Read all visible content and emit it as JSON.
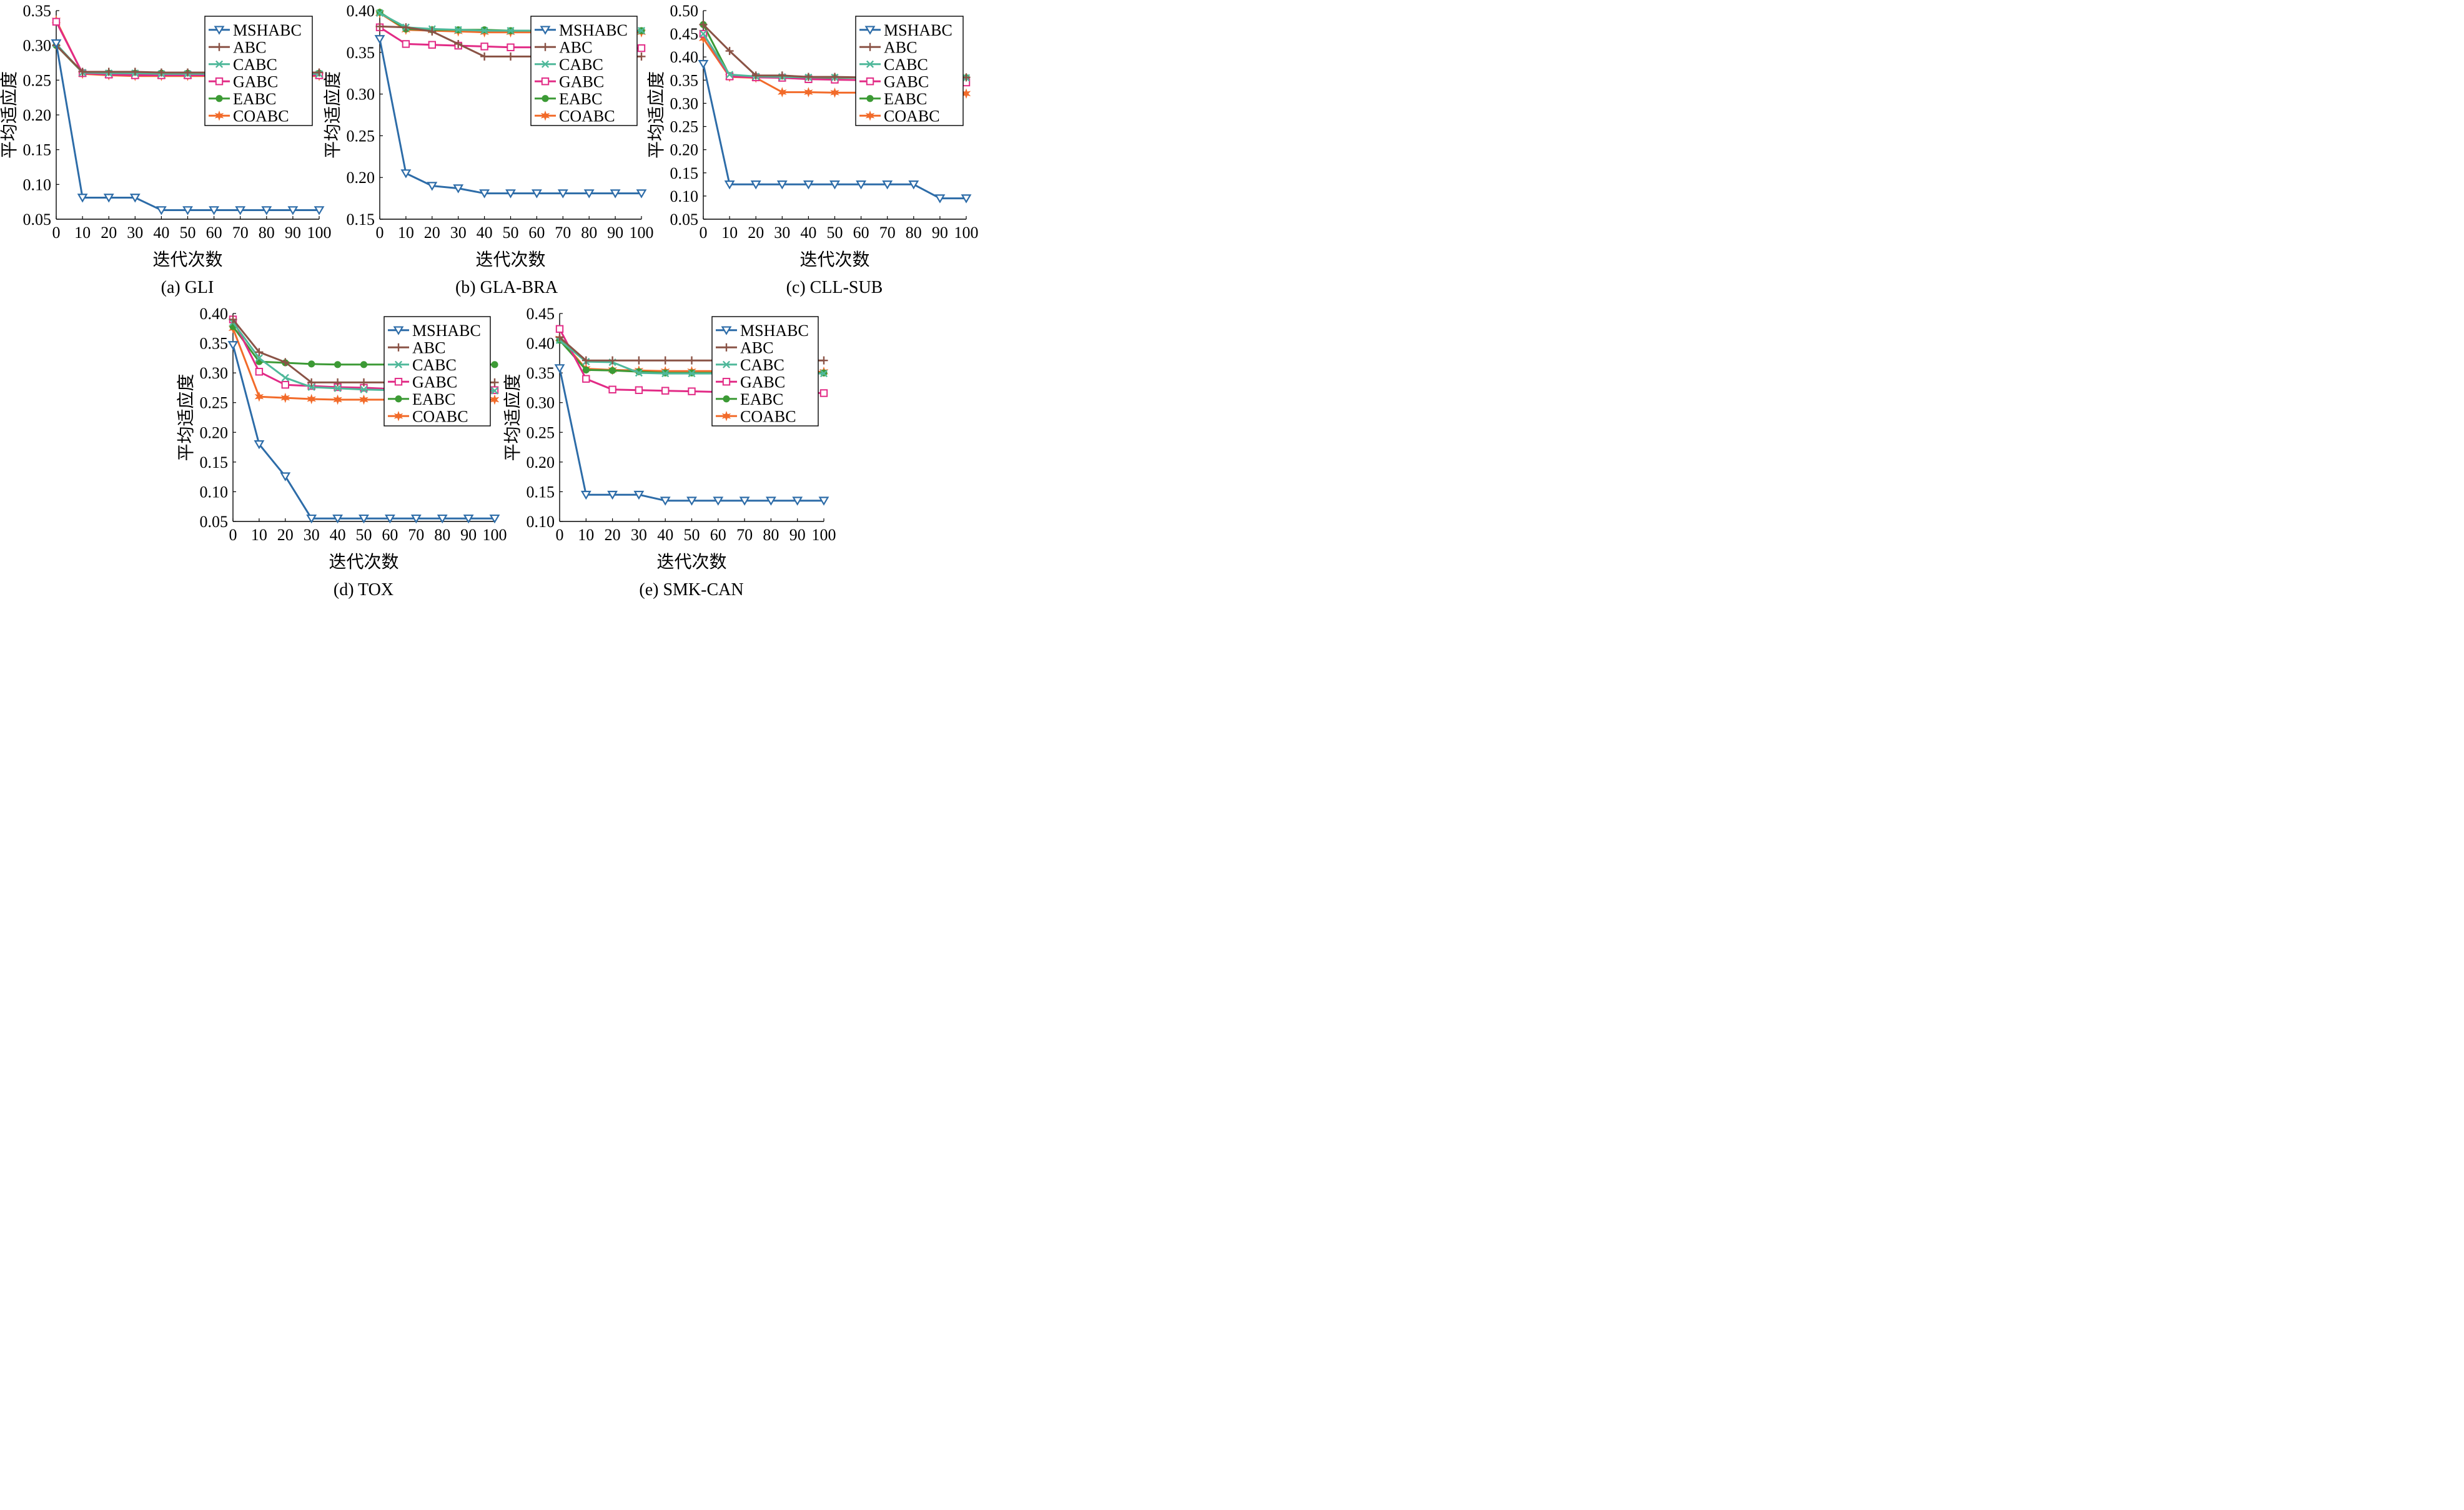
{
  "chart_data": [
    {
      "type": "line",
      "caption": "(a) GLI",
      "xlabel": "迭代次数",
      "ylabel": "平均适应度",
      "xlim": [
        0,
        100
      ],
      "ylim": [
        0.05,
        0.35
      ],
      "xticks": [
        "0",
        "10",
        "20",
        "30",
        "40",
        "50",
        "60",
        "70",
        "80",
        "90",
        "100"
      ],
      "yticks": [
        "0.05",
        "0.10",
        "0.15",
        "0.20",
        "0.25",
        "0.30",
        "0.35"
      ],
      "x": [
        0,
        10,
        20,
        30,
        40,
        50,
        60,
        70,
        80,
        90,
        100
      ],
      "legend": "top-right",
      "series": [
        {
          "name": "MSHABC",
          "values": [
            0.303,
            0.081,
            0.081,
            0.081,
            0.063,
            0.063,
            0.063,
            0.063,
            0.063,
            0.063,
            0.063
          ]
        },
        {
          "name": "ABC",
          "values": [
            0.3,
            0.262,
            0.262,
            0.262,
            0.261,
            0.261,
            0.261,
            0.261,
            0.261,
            0.261,
            0.261
          ]
        },
        {
          "name": "CABC",
          "values": [
            0.302,
            0.261,
            0.26,
            0.26,
            0.259,
            0.259,
            0.259,
            0.259,
            0.259,
            0.259,
            0.259
          ]
        },
        {
          "name": "GABC",
          "values": [
            0.334,
            0.26,
            0.258,
            0.257,
            0.257,
            0.257,
            0.257,
            0.257,
            0.257,
            0.257,
            0.257
          ]
        },
        {
          "name": "EABC",
          "values": [
            0.3,
            0.261,
            0.26,
            0.26,
            0.26,
            0.26,
            0.26,
            0.26,
            0.26,
            0.26,
            0.26
          ]
        },
        {
          "name": "COABC",
          "values": [
            0.336,
            0.259,
            0.257,
            0.256,
            0.256,
            0.256,
            0.256,
            0.256,
            0.256,
            0.256,
            0.256
          ]
        }
      ]
    },
    {
      "type": "line",
      "caption": "(b) GLA-BRA",
      "xlabel": "迭代次数",
      "ylabel": "平均适应度",
      "xlim": [
        0,
        100
      ],
      "ylim": [
        0.15,
        0.4
      ],
      "xticks": [
        "0",
        "10",
        "20",
        "30",
        "40",
        "50",
        "60",
        "70",
        "80",
        "90",
        "100"
      ],
      "yticks": [
        "0.15",
        "0.20",
        "0.25",
        "0.30",
        "0.35",
        "0.40"
      ],
      "x": [
        0,
        10,
        20,
        30,
        40,
        50,
        60,
        70,
        80,
        90,
        100
      ],
      "legend": "top-right",
      "series": [
        {
          "name": "MSHABC",
          "values": [
            0.366,
            0.205,
            0.19,
            0.187,
            0.181,
            0.181,
            0.181,
            0.181,
            0.181,
            0.181,
            0.181
          ]
        },
        {
          "name": "ABC",
          "values": [
            0.381,
            0.38,
            0.375,
            0.36,
            0.345,
            0.345,
            0.345,
            0.345,
            0.345,
            0.345,
            0.345
          ]
        },
        {
          "name": "CABC",
          "values": [
            0.397,
            0.38,
            0.378,
            0.377,
            0.376,
            0.376,
            0.376,
            0.376,
            0.376,
            0.376,
            0.376
          ]
        },
        {
          "name": "GABC",
          "values": [
            0.38,
            0.36,
            0.359,
            0.358,
            0.357,
            0.356,
            0.356,
            0.355,
            0.355,
            0.355,
            0.355
          ]
        },
        {
          "name": "EABC",
          "values": [
            0.398,
            0.378,
            0.377,
            0.377,
            0.377,
            0.376,
            0.376,
            0.376,
            0.376,
            0.376,
            0.376
          ]
        },
        {
          "name": "COABC",
          "values": [
            0.397,
            0.377,
            0.376,
            0.375,
            0.374,
            0.374,
            0.374,
            0.374,
            0.374,
            0.374,
            0.374
          ]
        }
      ]
    },
    {
      "type": "line",
      "caption": "(c) CLL-SUB",
      "xlabel": "迭代次数",
      "ylabel": "平均适应度",
      "xlim": [
        0,
        100
      ],
      "ylim": [
        0.05,
        0.5
      ],
      "xticks": [
        "0",
        "10",
        "20",
        "30",
        "40",
        "50",
        "60",
        "70",
        "80",
        "90",
        "100"
      ],
      "yticks": [
        "0.05",
        "0.10",
        "0.15",
        "0.20",
        "0.25",
        "0.30",
        "0.35",
        "0.40",
        "0.45",
        "0.50"
      ],
      "x": [
        0,
        10,
        20,
        30,
        40,
        50,
        60,
        70,
        80,
        90,
        100
      ],
      "legend": "top-right",
      "series": [
        {
          "name": "MSHABC",
          "values": [
            0.385,
            0.125,
            0.125,
            0.125,
            0.125,
            0.125,
            0.125,
            0.125,
            0.125,
            0.095,
            0.095
          ]
        },
        {
          "name": "ABC",
          "values": [
            0.47,
            0.413,
            0.36,
            0.36,
            0.357,
            0.357,
            0.356,
            0.356,
            0.356,
            0.356,
            0.356
          ]
        },
        {
          "name": "CABC",
          "values": [
            0.45,
            0.362,
            0.358,
            0.357,
            0.356,
            0.356,
            0.355,
            0.355,
            0.355,
            0.355,
            0.355
          ]
        },
        {
          "name": "GABC",
          "values": [
            0.45,
            0.358,
            0.356,
            0.355,
            0.352,
            0.351,
            0.35,
            0.349,
            0.348,
            0.346,
            0.345
          ]
        },
        {
          "name": "EABC",
          "values": [
            0.47,
            0.36,
            0.358,
            0.356,
            0.355,
            0.355,
            0.355,
            0.355,
            0.355,
            0.355,
            0.355
          ]
        },
        {
          "name": "COABC",
          "values": [
            0.44,
            0.357,
            0.355,
            0.324,
            0.324,
            0.323,
            0.323,
            0.323,
            0.322,
            0.322,
            0.321
          ]
        }
      ]
    },
    {
      "type": "line",
      "caption": "(d) TOX",
      "xlabel": "迭代次数",
      "ylabel": "平均适应度",
      "xlim": [
        0,
        100
      ],
      "ylim": [
        0.05,
        0.4
      ],
      "xticks": [
        "0",
        "10",
        "20",
        "30",
        "40",
        "50",
        "60",
        "70",
        "80",
        "90",
        "100"
      ],
      "yticks": [
        "0.05",
        "0.10",
        "0.15",
        "0.20",
        "0.25",
        "0.30",
        "0.35",
        "0.40"
      ],
      "x": [
        0,
        10,
        20,
        30,
        40,
        50,
        60,
        70,
        80,
        90,
        100
      ],
      "legend": "top-right",
      "series": [
        {
          "name": "MSHABC",
          "values": [
            0.347,
            0.18,
            0.126,
            0.055,
            0.055,
            0.055,
            0.055,
            0.055,
            0.055,
            0.055,
            0.055
          ]
        },
        {
          "name": "ABC",
          "values": [
            0.39,
            0.335,
            0.318,
            0.284,
            0.284,
            0.284,
            0.284,
            0.284,
            0.284,
            0.284,
            0.284
          ]
        },
        {
          "name": "CABC",
          "values": [
            0.385,
            0.325,
            0.292,
            0.276,
            0.274,
            0.272,
            0.271,
            0.27,
            0.27,
            0.27,
            0.27
          ]
        },
        {
          "name": "GABC",
          "values": [
            0.39,
            0.302,
            0.28,
            0.278,
            0.276,
            0.275,
            0.273,
            0.273,
            0.272,
            0.272,
            0.271
          ]
        },
        {
          "name": "EABC",
          "values": [
            0.378,
            0.319,
            0.317,
            0.315,
            0.314,
            0.314,
            0.314,
            0.314,
            0.314,
            0.314,
            0.314
          ]
        },
        {
          "name": "COABC",
          "values": [
            0.375,
            0.26,
            0.258,
            0.256,
            0.255,
            0.255,
            0.255,
            0.255,
            0.255,
            0.255,
            0.255
          ]
        }
      ]
    },
    {
      "type": "line",
      "caption": "(e) SMK-CAN",
      "xlabel": "迭代次数",
      "ylabel": "平均适应度",
      "xlim": [
        0,
        100
      ],
      "ylim": [
        0.1,
        0.45
      ],
      "xticks": [
        "0",
        "10",
        "20",
        "30",
        "40",
        "50",
        "60",
        "70",
        "80",
        "90",
        "100"
      ],
      "yticks": [
        "0.10",
        "0.15",
        "0.20",
        "0.25",
        "0.30",
        "0.35",
        "0.40",
        "0.45"
      ],
      "x": [
        0,
        10,
        20,
        30,
        40,
        50,
        60,
        70,
        80,
        90,
        100
      ],
      "legend": "top-right",
      "series": [
        {
          "name": "MSHABC",
          "values": [
            0.358,
            0.145,
            0.145,
            0.145,
            0.135,
            0.135,
            0.135,
            0.135,
            0.135,
            0.135,
            0.135
          ]
        },
        {
          "name": "ABC",
          "values": [
            0.41,
            0.371,
            0.371,
            0.371,
            0.371,
            0.371,
            0.371,
            0.371,
            0.371,
            0.371,
            0.371
          ]
        },
        {
          "name": "CABC",
          "values": [
            0.405,
            0.369,
            0.368,
            0.35,
            0.349,
            0.349,
            0.349,
            0.349,
            0.349,
            0.349,
            0.349
          ]
        },
        {
          "name": "GABC",
          "values": [
            0.424,
            0.34,
            0.322,
            0.321,
            0.32,
            0.319,
            0.318,
            0.318,
            0.317,
            0.317,
            0.316
          ]
        },
        {
          "name": "EABC",
          "values": [
            0.405,
            0.355,
            0.354,
            0.352,
            0.35,
            0.35,
            0.35,
            0.35,
            0.35,
            0.35,
            0.35
          ]
        },
        {
          "name": "COABC",
          "values": [
            0.408,
            0.357,
            0.355,
            0.354,
            0.353,
            0.353,
            0.353,
            0.352,
            0.352,
            0.352,
            0.352
          ]
        }
      ]
    }
  ],
  "styles": {
    "MSHABC": {
      "color": "#2d6ca8",
      "marker": "triangle-down-open"
    },
    "ABC": {
      "color": "#8a5346",
      "marker": "plus"
    },
    "CABC": {
      "color": "#4fb89a",
      "marker": "x"
    },
    "GABC": {
      "color": "#e22b86",
      "marker": "square-open"
    },
    "EABC": {
      "color": "#3c9a35",
      "marker": "circle-filled"
    },
    "COABC": {
      "color": "#f26b2a",
      "marker": "star"
    }
  }
}
